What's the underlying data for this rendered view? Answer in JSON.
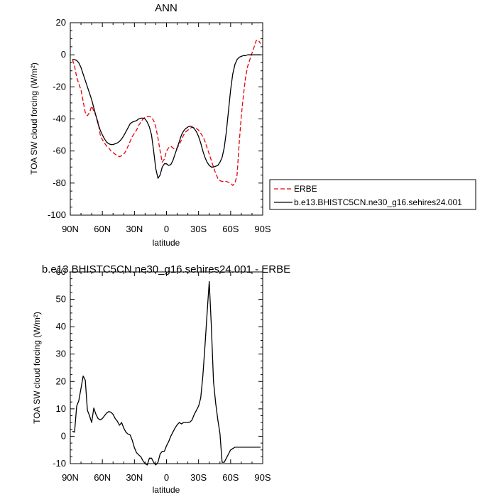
{
  "chart_data": [
    {
      "type": "line",
      "title": "ANN",
      "xlabel": "latitude",
      "ylabel": "TOA SW cloud forcing (W/m²)",
      "xlim": [
        90,
        -90
      ],
      "ylim": [
        -100,
        20
      ],
      "xticks": [
        90,
        60,
        30,
        0,
        -30,
        -60,
        -90
      ],
      "xtick_labels": [
        "90N",
        "60N",
        "30N",
        "0",
        "30S",
        "60S",
        "90S"
      ],
      "yticks": [
        -100,
        -80,
        -60,
        -40,
        -20,
        0,
        20
      ],
      "ytick_labels": [
        "-100",
        "-80",
        "-60",
        "-40",
        "-20",
        "0",
        "20"
      ],
      "legend": "right",
      "series": [
        {
          "name": "ERBE",
          "color": "#e8000b",
          "dash": "dashed",
          "x": [
            88,
            86,
            84,
            82,
            80,
            78,
            76,
            74,
            72,
            70,
            68,
            66,
            64,
            62,
            60,
            58,
            56,
            54,
            52,
            50,
            48,
            46,
            44,
            42,
            40,
            38,
            36,
            34,
            32,
            30,
            28,
            26,
            24,
            22,
            20,
            18,
            16,
            14,
            12,
            10,
            8,
            6,
            4,
            2,
            0,
            -2,
            -4,
            -6,
            -8,
            -10,
            -12,
            -14,
            -16,
            -18,
            -20,
            -22,
            -24,
            -26,
            -28,
            -30,
            -32,
            -34,
            -36,
            -38,
            -40,
            -42,
            -44,
            -46,
            -48,
            -50,
            -52,
            -54,
            -56,
            -58,
            -60,
            -62,
            -64,
            -66,
            -68,
            -70,
            -72,
            -74,
            -76,
            -78,
            -80,
            -82,
            -84,
            -86,
            -88
          ],
          "y": [
            -3,
            -7,
            -14,
            -18,
            -22,
            -29,
            -36,
            -38,
            -36,
            -32,
            -35,
            -38,
            -42,
            -50,
            -53,
            -55,
            -57,
            -58,
            -60,
            -61,
            -62,
            -63,
            -63.5,
            -63,
            -62,
            -60,
            -57,
            -54,
            -51,
            -49,
            -47,
            -44,
            -42,
            -40,
            -39,
            -38.5,
            -38.5,
            -39,
            -41,
            -45,
            -52,
            -60,
            -67,
            -65,
            -60,
            -58,
            -57,
            -58,
            -59,
            -58,
            -56,
            -53,
            -50,
            -48,
            -47,
            -46,
            -45,
            -45.5,
            -46,
            -47,
            -49,
            -51,
            -54,
            -58,
            -62,
            -66,
            -70,
            -74,
            -77,
            -78.5,
            -79,
            -79,
            -79,
            -79.5,
            -80,
            -81.5,
            -80,
            -75,
            -55,
            -38,
            -25,
            -14,
            -7,
            -3,
            1,
            5,
            9,
            9,
            7
          ]
        },
        {
          "name": "b.e13.BHISTC5CN.ne30_g16.sehires24.001",
          "color": "#000000",
          "dash": "solid",
          "x": [
            88,
            86,
            84,
            82,
            80,
            78,
            76,
            74,
            72,
            70,
            68,
            66,
            64,
            62,
            60,
            58,
            56,
            54,
            52,
            50,
            48,
            46,
            44,
            42,
            40,
            38,
            36,
            34,
            32,
            30,
            28,
            26,
            24,
            22,
            20,
            18,
            16,
            14,
            12,
            10,
            8,
            6,
            4,
            2,
            0,
            -2,
            -4,
            -6,
            -8,
            -10,
            -12,
            -14,
            -16,
            -18,
            -20,
            -22,
            -24,
            -26,
            -28,
            -30,
            -32,
            -34,
            -36,
            -38,
            -40,
            -42,
            -44,
            -46,
            -48,
            -50,
            -52,
            -54,
            -56,
            -58,
            -60,
            -62,
            -64,
            -66,
            -68,
            -70,
            -72,
            -74,
            -76,
            -78,
            -80,
            -82,
            -84,
            -86,
            -88
          ],
          "y": [
            -3,
            -3,
            -3.5,
            -5,
            -8,
            -12,
            -16,
            -20,
            -24,
            -28,
            -33,
            -38,
            -43,
            -47,
            -50,
            -52.5,
            -54.5,
            -55.5,
            -56,
            -56,
            -55.5,
            -55,
            -54,
            -52.5,
            -50.5,
            -48,
            -45.5,
            -43,
            -42,
            -41.5,
            -41,
            -40,
            -39.5,
            -39.5,
            -40,
            -42,
            -45,
            -50,
            -60,
            -71,
            -77,
            -75,
            -70,
            -68,
            -68,
            -69,
            -68.5,
            -66,
            -62,
            -58,
            -54,
            -50,
            -47.5,
            -46,
            -45,
            -44.5,
            -45,
            -46,
            -48,
            -51,
            -55,
            -60,
            -64,
            -67,
            -69,
            -70,
            -70,
            -69.5,
            -69,
            -67,
            -64,
            -58,
            -48,
            -35,
            -22,
            -12,
            -6,
            -3,
            -1.5,
            -1,
            -0.5,
            -0.5,
            0,
            0,
            0,
            0,
            0,
            0,
            0
          ]
        }
      ]
    },
    {
      "type": "line",
      "title": "b.e13.BHISTC5CN.ne30_g16.sehires24.001 - ERBE",
      "xlabel": "latitude",
      "ylabel": "TOA SW cloud forcing (W/m²)",
      "xlim": [
        90,
        -90
      ],
      "ylim": [
        -10,
        60
      ],
      "xticks": [
        90,
        60,
        30,
        0,
        -30,
        -60,
        -90
      ],
      "xtick_labels": [
        "90N",
        "60N",
        "30N",
        "0",
        "30S",
        "60S",
        "90S"
      ],
      "yticks": [
        -10,
        0,
        10,
        20,
        30,
        40,
        50,
        60
      ],
      "ytick_labels": [
        "-10",
        "0",
        "10",
        "20",
        "30",
        "40",
        "50",
        "60"
      ],
      "series": [
        {
          "color": "#000000",
          "dash": "solid",
          "x": [
            88,
            86,
            84,
            82,
            80,
            78,
            76,
            74,
            72,
            70,
            68,
            66,
            64,
            62,
            60,
            58,
            56,
            54,
            52,
            50,
            48,
            46,
            44,
            42,
            40,
            38,
            36,
            34,
            32,
            30,
            28,
            26,
            24,
            22,
            20,
            18,
            16,
            14,
            12,
            10,
            8,
            6,
            4,
            2,
            0,
            -2,
            -4,
            -6,
            -8,
            -10,
            -12,
            -14,
            -16,
            -18,
            -20,
            -22,
            -24,
            -26,
            -28,
            -30,
            -32,
            -34,
            -36,
            -38,
            -40,
            -42,
            -44,
            -46,
            -48,
            -50,
            -52,
            -54,
            -56,
            -58,
            -60,
            -62,
            -64,
            -66,
            -68,
            -70,
            -72,
            -74,
            -76,
            -78,
            -80,
            -82,
            -84,
            -86,
            -88
          ],
          "y": [
            1.8,
            1.5,
            11,
            13,
            17.5,
            22,
            20.5,
            9.5,
            7.5,
            5,
            10.3,
            8,
            6.5,
            6,
            6.5,
            7.5,
            8.5,
            9,
            8.8,
            8,
            6.5,
            5.5,
            4,
            5,
            3,
            1.5,
            0.8,
            0.5,
            -1.5,
            -4.2,
            -6,
            -6.8,
            -7.5,
            -9,
            -10,
            -10.5,
            -8,
            -8,
            -9.5,
            -10.5,
            -9.5,
            -6.5,
            -5.5,
            -5.5,
            -3.5,
            -2,
            0,
            1.5,
            3,
            4.2,
            5,
            4.5,
            5,
            5,
            5,
            5.2,
            6,
            8,
            9.5,
            11,
            14,
            22,
            33,
            45,
            56.5,
            40,
            20,
            12,
            6,
            1,
            -9.5,
            -9.5,
            -8,
            -6.5,
            -5,
            -4.5,
            -4,
            -4,
            -4,
            -4,
            -4,
            -4,
            -4,
            -4,
            -4,
            -4,
            -4,
            -4,
            -4
          ]
        }
      ]
    }
  ]
}
